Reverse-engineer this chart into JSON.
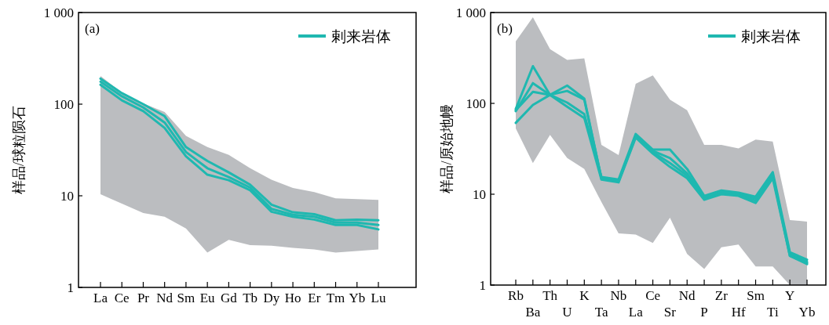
{
  "chart_data": [
    {
      "type": "line",
      "log": "y",
      "ylabel": "样品/球粒陨石",
      "annotations": [
        "(a)"
      ],
      "legend": "top right",
      "ylim": [
        1,
        1000
      ],
      "yticks": [
        1,
        10,
        100,
        {
          "value": 1000,
          "label": "1 000"
        }
      ],
      "categories": [
        "La",
        "Ce",
        "Pr",
        "Nd",
        "Sm",
        "Eu",
        "Gd",
        "Tb",
        "Dy",
        "Ho",
        "Er",
        "Tm",
        "Yb",
        "Lu"
      ],
      "series": [
        {
          "type": "area",
          "color": "#bbbdc0",
          "values": [
            null,
            null,
            null,
            null,
            null,
            null,
            null,
            null,
            null,
            null,
            null,
            null,
            null,
            null
          ],
          "upper": [
            203,
            134,
            102,
            82,
            45,
            34,
            28,
            20,
            15,
            12.2,
            11,
            9.4,
            9.2,
            9.0
          ],
          "lower": [
            10.4,
            8.2,
            6.5,
            5.9,
            4.4,
            2.4,
            3.3,
            2.9,
            2.85,
            2.7,
            2.6,
            2.4,
            2.5,
            2.6
          ]
        },
        {
          "name": "剌来岩体",
          "color": "#1fb8b0",
          "values": [
            190,
            132,
            100,
            74,
            34,
            24,
            18,
            13.2,
            8.0,
            6.6,
            6.3,
            5.4,
            5.5,
            5.4
          ]
        },
        {
          "color": "#1fb8b0",
          "values": [
            176,
            122,
            92,
            63,
            30,
            20,
            16,
            12.3,
            7.2,
            6.2,
            5.9,
            5.1,
            5.1,
            4.8
          ]
        },
        {
          "color": "#1fb8b0",
          "values": [
            163,
            110,
            84,
            55,
            27,
            17,
            14.8,
            11.5,
            6.7,
            5.9,
            5.5,
            4.8,
            4.8,
            4.3
          ]
        }
      ]
    },
    {
      "type": "line",
      "log": "y",
      "ylabel": "样品/原始地幔",
      "annotations": [
        "(b)"
      ],
      "legend": "top right",
      "ylim": [
        1,
        1000
      ],
      "yticks": [
        1,
        10,
        100,
        {
          "value": 1000,
          "label": "1 000"
        }
      ],
      "categories": [
        "Rb",
        "Ba",
        "Th",
        "U",
        "K",
        "Ta",
        "Nb",
        "La",
        "Ce",
        "Sr",
        "Nd",
        "P",
        "Zr",
        "Hf",
        "Sm",
        "Ti",
        "Y",
        "Yb"
      ],
      "series": [
        {
          "type": "area",
          "color": "#bbbdc0",
          "values": [
            null,
            null,
            null,
            null,
            null,
            null,
            null,
            null,
            null,
            null,
            null,
            null,
            null,
            null,
            null,
            null,
            null,
            null
          ],
          "upper": [
            483,
            889,
            396,
            301,
            313,
            35,
            27,
            164,
            203,
            110,
            84,
            35,
            35,
            32,
            40,
            38,
            5.2,
            5.0
          ],
          "lower": [
            53,
            22,
            45,
            25,
            19,
            8.2,
            3.7,
            3.6,
            2.9,
            5.5,
            2.2,
            1.5,
            2.6,
            2.8,
            1.6,
            1.6,
            1.0,
            1.0
          ]
        },
        {
          "name": "剌来岩体",
          "color": "#1fb8b0",
          "values": [
            87,
            257,
            124,
            102,
            76,
            15.5,
            14.5,
            46,
            31,
            31,
            19,
            9.6,
            11,
            10.4,
            9.4,
            17.5,
            2.3,
            1.9
          ]
        },
        {
          "color": "#1fb8b0",
          "values": [
            82,
            167,
            124,
            137,
            110,
            15.0,
            14.0,
            44,
            30,
            25,
            17,
            9.2,
            10.6,
            10.0,
            9.0,
            16.5,
            2.2,
            1.8
          ]
        },
        {
          "color": "#1fb8b0",
          "values": [
            84,
            134,
            124,
            157,
            113,
            14.8,
            13.8,
            43,
            29,
            22,
            16,
            8.9,
            10.2,
            9.8,
            8.5,
            16,
            2.1,
            1.75
          ]
        },
        {
          "color": "#1fb8b0",
          "values": [
            61,
            96,
            124,
            92,
            69,
            14.5,
            13.5,
            42,
            28,
            20,
            15,
            8.7,
            10.0,
            9.6,
            8.0,
            15,
            2.1,
            1.7
          ]
        }
      ]
    }
  ]
}
